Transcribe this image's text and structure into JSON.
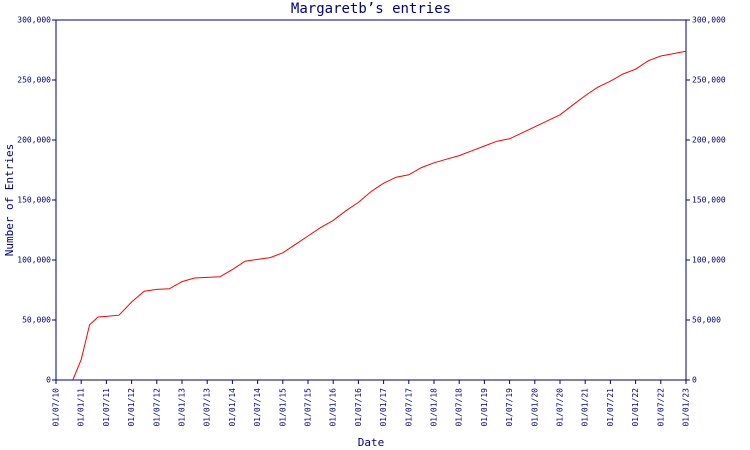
{
  "chart_data": {
    "type": "line",
    "title": "Margaretb’s entries",
    "x_label": "Date",
    "y_label": "Number of Entries",
    "x": [
      "01/11/10",
      "01/01/11",
      "01/03/11",
      "01/05/11",
      "01/07/11",
      "01/10/11",
      "01/01/12",
      "01/04/12",
      "01/07/12",
      "01/10/12",
      "01/01/13",
      "01/04/13",
      "01/07/13",
      "01/10/13",
      "01/01/14",
      "01/04/14",
      "01/07/14",
      "01/10/14",
      "01/01/15",
      "01/04/15",
      "01/07/15",
      "01/10/15",
      "01/01/16",
      "01/04/16",
      "01/07/16",
      "01/10/16",
      "01/01/17",
      "01/04/17",
      "01/07/17",
      "01/10/17",
      "01/01/18",
      "01/04/18",
      "01/07/18",
      "01/10/18",
      "01/01/19",
      "01/04/19",
      "01/07/19",
      "01/10/19",
      "01/01/20",
      "01/04/20",
      "01/07/20",
      "01/10/20",
      "01/01/21",
      "01/04/21",
      "01/07/21",
      "01/10/21",
      "01/01/22",
      "01/04/22",
      "01/07/22",
      "01/10/22",
      "01/01/23"
    ],
    "series": [
      {
        "name": "entries",
        "color": "#ff0000",
        "values": [
          0,
          17000,
          46000,
          52500,
          53000,
          54000,
          65000,
          74000,
          75500,
          76000,
          82000,
          85000,
          85500,
          86000,
          92000,
          99000,
          100500,
          102000,
          106000,
          113000,
          120000,
          127000,
          133000,
          141000,
          148000,
          157000,
          164000,
          169000,
          171000,
          177000,
          181000,
          184000,
          187000,
          191000,
          195000,
          199000,
          201000,
          206000,
          211000,
          216000,
          221000,
          229000,
          237000,
          244000,
          249000,
          255000,
          259000,
          266000,
          270000,
          272000,
          274000
        ]
      }
    ],
    "xlim": [
      "01/07/10",
      "01/01/23"
    ],
    "xticks": [
      "01/07/10",
      "01/01/11",
      "01/07/11",
      "01/01/12",
      "01/07/12",
      "01/01/13",
      "01/07/13",
      "01/01/14",
      "01/07/14",
      "01/01/15",
      "01/07/15",
      "01/01/16",
      "01/07/16",
      "01/01/17",
      "01/07/17",
      "01/01/18",
      "01/07/18",
      "01/01/19",
      "01/07/19",
      "01/01/20",
      "01/07/20",
      "01/01/21",
      "01/07/21",
      "01/01/22",
      "01/07/22",
      "01/01/23"
    ],
    "ylim": [
      0,
      300000
    ],
    "yticks": [
      0,
      {
        "value": 50000,
        "label": "50,000"
      },
      {
        "value": 100000,
        "label": "100,000"
      },
      {
        "value": 150000,
        "label": "150,000"
      },
      {
        "value": 200000,
        "label": "200,000"
      },
      {
        "value": 250000,
        "label": "250,000"
      },
      {
        "value": 300000,
        "label": "300,000"
      }
    ],
    "y2lim": [
      0,
      300000
    ],
    "y2ticks": [
      0,
      {
        "value": 50000,
        "label": "50,000"
      },
      {
        "value": 100000,
        "label": "100,000"
      },
      {
        "value": 150000,
        "label": "150,000"
      },
      {
        "value": 200000,
        "label": "200,000"
      },
      {
        "value": 250000,
        "label": "250,000"
      },
      {
        "value": 300000,
        "label": "300,000"
      }
    ],
    "axis_color": "#000080",
    "grid": false
  }
}
